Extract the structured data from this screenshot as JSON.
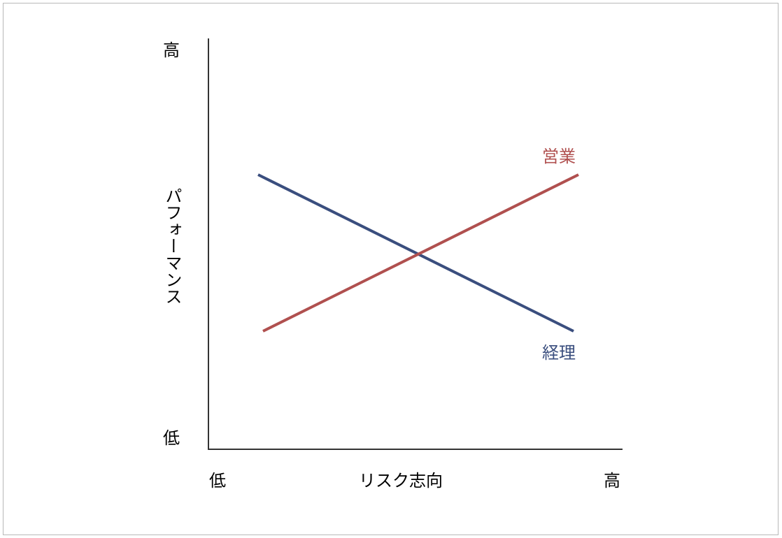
{
  "y_axis": {
    "label": "パフォーマンス",
    "high": "高",
    "low": "低"
  },
  "x_axis": {
    "label": "リスク志向",
    "low": "低",
    "high": "高"
  },
  "series": [
    {
      "label": "営業"
    },
    {
      "label": "経理"
    }
  ]
}
